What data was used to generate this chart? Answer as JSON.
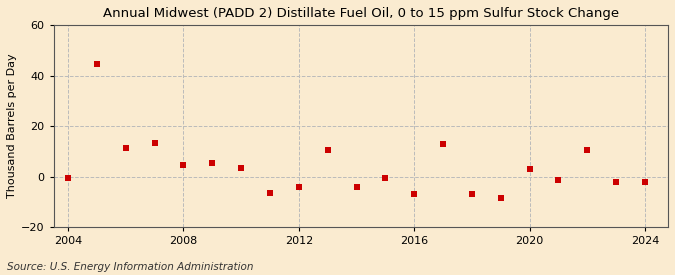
{
  "title": "Annual Midwest (PADD 2) Distillate Fuel Oil, 0 to 15 ppm Sulfur Stock Change",
  "ylabel": "Thousand Barrels per Day",
  "source": "Source: U.S. Energy Information Administration",
  "background_color": "#faebd0",
  "years": [
    2004,
    2005,
    2006,
    2007,
    2008,
    2009,
    2010,
    2011,
    2012,
    2013,
    2014,
    2015,
    2016,
    2017,
    2018,
    2019,
    2020,
    2021,
    2022,
    2023,
    2024
  ],
  "values": [
    -0.5,
    44.5,
    11.5,
    13.5,
    4.5,
    5.5,
    3.5,
    -6.5,
    -4.0,
    10.5,
    -4.0,
    -0.5,
    -7.0,
    13.0,
    -7.0,
    -8.5,
    3.0,
    -1.5,
    10.5,
    -2.0,
    -2.0
  ],
  "marker_color": "#cc0000",
  "marker_size": 25,
  "xlim": [
    2003.5,
    2024.8
  ],
  "ylim": [
    -20,
    60
  ],
  "yticks": [
    -20,
    0,
    20,
    40,
    60
  ],
  "xticks": [
    2004,
    2008,
    2012,
    2016,
    2020,
    2024
  ],
  "grid_color": "#bbbbbb",
  "vgrid_positions": [
    2004,
    2008,
    2012,
    2016,
    2020,
    2024
  ],
  "title_fontsize": 9.5,
  "axis_fontsize": 8,
  "source_fontsize": 7.5
}
